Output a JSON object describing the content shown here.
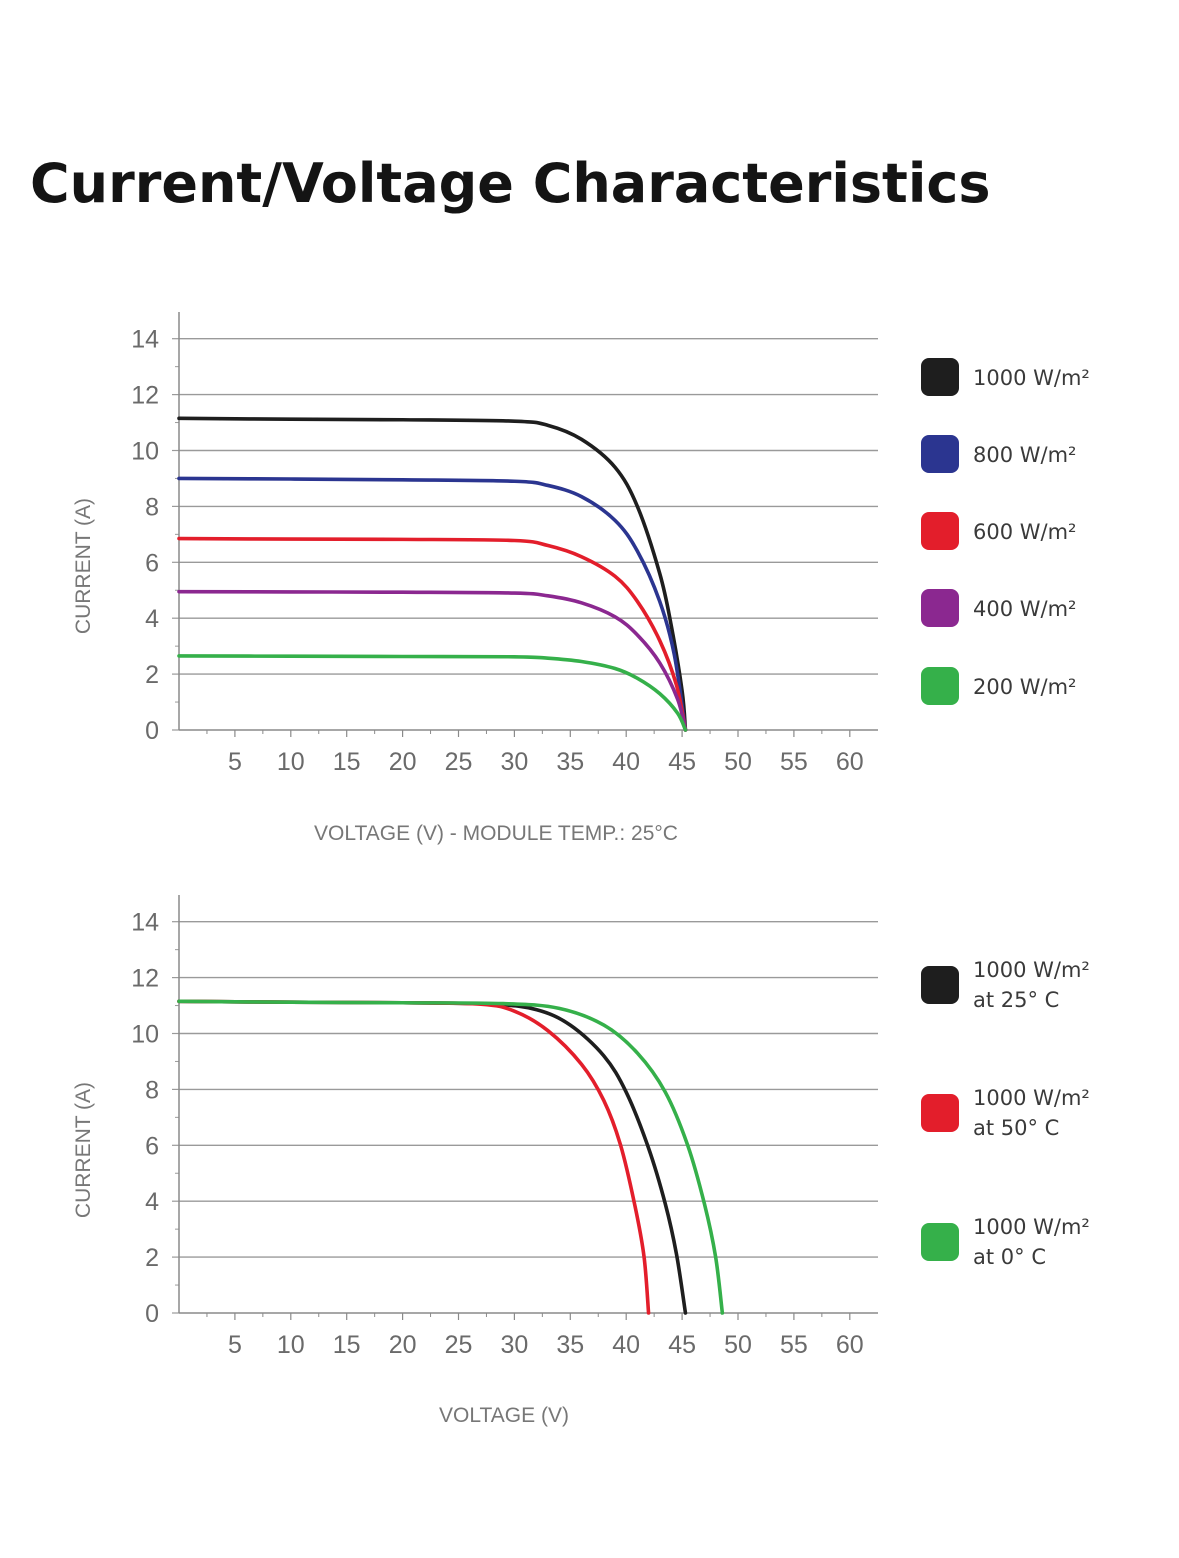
{
  "page": {
    "title": "Current/Voltage Characteristics"
  },
  "chart_data": [
    {
      "type": "line",
      "title": "",
      "xlabel": "VOLTAGE (V) - MODULE TEMP.: 25°C",
      "ylabel": "CURRENT (A)",
      "xlim": [
        0,
        62
      ],
      "ylim": [
        0,
        14.5
      ],
      "xticks": [
        5,
        10,
        15,
        20,
        25,
        30,
        35,
        40,
        45,
        50,
        55,
        60
      ],
      "yticks": [
        0,
        2,
        4,
        6,
        8,
        10,
        12,
        14
      ],
      "grid": "horizontal",
      "legend_position": "right",
      "series": [
        {
          "name": "1000 W/m²",
          "color": "#1e1e1e",
          "values": [
            [
              0,
              11.15
            ],
            [
              10,
              11.12
            ],
            [
              20,
              11.1
            ],
            [
              30,
              11.05
            ],
            [
              33,
              10.9
            ],
            [
              36,
              10.4
            ],
            [
              39,
              9.4
            ],
            [
              41,
              8.0
            ],
            [
              43,
              5.6
            ],
            [
              44,
              3.8
            ],
            [
              45,
              1.4
            ],
            [
              45.3,
              0
            ]
          ]
        },
        {
          "name": "800 W/m²",
          "color": "#2b3590",
          "values": [
            [
              0,
              9.0
            ],
            [
              10,
              8.98
            ],
            [
              20,
              8.95
            ],
            [
              30,
              8.9
            ],
            [
              33,
              8.75
            ],
            [
              36,
              8.35
            ],
            [
              39,
              7.5
            ],
            [
              41,
              6.4
            ],
            [
              43,
              4.6
            ],
            [
              44.3,
              2.7
            ],
            [
              45.3,
              0
            ]
          ]
        },
        {
          "name": "600 W/m²",
          "color": "#e31e2b",
          "values": [
            [
              0,
              6.85
            ],
            [
              10,
              6.83
            ],
            [
              20,
              6.82
            ],
            [
              30,
              6.78
            ],
            [
              33,
              6.6
            ],
            [
              36,
              6.2
            ],
            [
              39,
              5.5
            ],
            [
              41,
              4.6
            ],
            [
              43,
              3.2
            ],
            [
              44.5,
              1.6
            ],
            [
              45.3,
              0
            ]
          ]
        },
        {
          "name": "400 W/m²",
          "color": "#8b2890",
          "values": [
            [
              0,
              4.95
            ],
            [
              10,
              4.94
            ],
            [
              20,
              4.93
            ],
            [
              30,
              4.9
            ],
            [
              33,
              4.8
            ],
            [
              36,
              4.55
            ],
            [
              39,
              4.05
            ],
            [
              41,
              3.4
            ],
            [
              43,
              2.4
            ],
            [
              44.6,
              1.1
            ],
            [
              45.3,
              0
            ]
          ]
        },
        {
          "name": "200 W/m²",
          "color": "#35b04a",
          "values": [
            [
              0,
              2.65
            ],
            [
              10,
              2.64
            ],
            [
              20,
              2.63
            ],
            [
              30,
              2.62
            ],
            [
              33,
              2.57
            ],
            [
              36,
              2.45
            ],
            [
              39,
              2.2
            ],
            [
              41,
              1.85
            ],
            [
              43,
              1.3
            ],
            [
              44.6,
              0.6
            ],
            [
              45.3,
              0
            ]
          ]
        }
      ]
    },
    {
      "type": "line",
      "title": "",
      "xlabel": "VOLTAGE (V)",
      "ylabel": "CURRENT (A)",
      "xlim": [
        0,
        62
      ],
      "ylim": [
        0,
        14.5
      ],
      "xticks": [
        5,
        10,
        15,
        20,
        25,
        30,
        35,
        40,
        45,
        50,
        55,
        60
      ],
      "yticks": [
        0,
        2,
        4,
        6,
        8,
        10,
        12,
        14
      ],
      "grid": "horizontal",
      "legend_position": "right",
      "series": [
        {
          "name": "1000 W/m² at 25° C",
          "color": "#1e1e1e",
          "values": [
            [
              0,
              11.15
            ],
            [
              10,
              11.12
            ],
            [
              20,
              11.1
            ],
            [
              28,
              11.05
            ],
            [
              32,
              10.85
            ],
            [
              35,
              10.3
            ],
            [
              38,
              9.2
            ],
            [
              40,
              7.9
            ],
            [
              42,
              5.9
            ],
            [
              43.5,
              3.9
            ],
            [
              44.5,
              2.1
            ],
            [
              45.3,
              0
            ]
          ]
        },
        {
          "name": "1000 W/m² at 50° C",
          "color": "#e31e2b",
          "values": [
            [
              0,
              11.15
            ],
            [
              10,
              11.12
            ],
            [
              20,
              11.1
            ],
            [
              27,
              11.05
            ],
            [
              30,
              10.8
            ],
            [
              33,
              10.1
            ],
            [
              36,
              8.9
            ],
            [
              38,
              7.6
            ],
            [
              39.5,
              6.0
            ],
            [
              40.8,
              3.8
            ],
            [
              41.6,
              2.0
            ],
            [
              42,
              0
            ]
          ]
        },
        {
          "name": "1000 W/m² at 0° C",
          "color": "#35b04a",
          "values": [
            [
              0,
              11.15
            ],
            [
              10,
              11.12
            ],
            [
              20,
              11.1
            ],
            [
              29,
              11.07
            ],
            [
              34,
              10.9
            ],
            [
              38,
              10.3
            ],
            [
              41,
              9.3
            ],
            [
              43.5,
              7.9
            ],
            [
              45.5,
              6.0
            ],
            [
              47,
              3.9
            ],
            [
              48,
              2.0
            ],
            [
              48.6,
              0
            ]
          ]
        }
      ]
    }
  ],
  "legends": [
    [
      {
        "line1": "1000 W/m²",
        "line2": "",
        "color": "#1e1e1e"
      },
      {
        "line1": "800 W/m²",
        "line2": "",
        "color": "#2b3590"
      },
      {
        "line1": "600 W/m²",
        "line2": "",
        "color": "#e31e2b"
      },
      {
        "line1": "400 W/m²",
        "line2": "",
        "color": "#8b2890"
      },
      {
        "line1": "200 W/m²",
        "line2": "",
        "color": "#35b04a"
      }
    ],
    [
      {
        "line1": "1000 W/m²",
        "line2": "at 25° C",
        "color": "#1e1e1e"
      },
      {
        "line1": "1000 W/m²",
        "line2": "at 50° C",
        "color": "#e31e2b"
      },
      {
        "line1": "1000 W/m²",
        "line2": "at 0° C",
        "color": "#35b04a"
      }
    ]
  ]
}
